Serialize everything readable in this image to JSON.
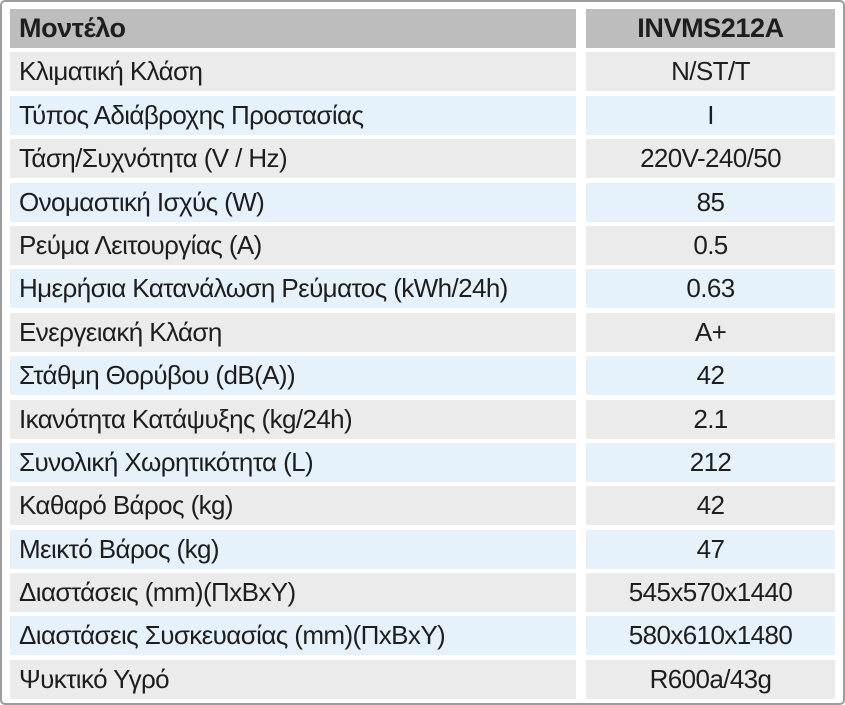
{
  "table": {
    "header": {
      "label": "Μοντέλο",
      "value": "INVMS212A"
    },
    "rows": [
      {
        "label": "Κλιματική Κλάση",
        "value": "N/ST/T"
      },
      {
        "label": "Τύπος Αδιάβροχης Προστασίας",
        "value": "I"
      },
      {
        "label": "Τάση/Συχνότητα (V / Hz)",
        "value": "220V-240/50"
      },
      {
        "label": "Ονομαστική Ισχύς (W)",
        "value": "85"
      },
      {
        "label": "Ρεύμα Λειτουργίας (A)",
        "value": "0.5"
      },
      {
        "label": "Ημερήσια Κατανάλωση Ρεύματος (kWh/24h)",
        "value": "0.63"
      },
      {
        "label": "Ενεργειακή Κλάση",
        "value": "A+"
      },
      {
        "label": "Στάθμη Θορύβου (dB(A))",
        "value": "42"
      },
      {
        "label": "Ικανότητα Κατάψυξης (kg/24h)",
        "value": "2.1"
      },
      {
        "label": "Συνολική Χωρητικότητα (L)",
        "value": "212"
      },
      {
        "label": "Καθαρό Βάρος (kg)",
        "value": "42"
      },
      {
        "label": "Μεικτό Βάρος (kg)",
        "value": "47"
      },
      {
        "label": "Διαστάσεις (mm)(ΠxΒxΥ)",
        "value": "545x570x1440"
      },
      {
        "label": "Διαστάσεις Συσκευασίας (mm)(ΠxΒxΥ)",
        "value": "580x610x1480"
      },
      {
        "label": "Ψυκτικό Υγρό",
        "value": "R600a/43g"
      }
    ],
    "colors": {
      "header_bg": "#bdbdbd",
      "row_gray": "#ebebeb",
      "row_blue": "#e5f2fb",
      "text": "#1e1e1e",
      "border": "#9c9c9c",
      "gap": "#ffffff"
    }
  }
}
